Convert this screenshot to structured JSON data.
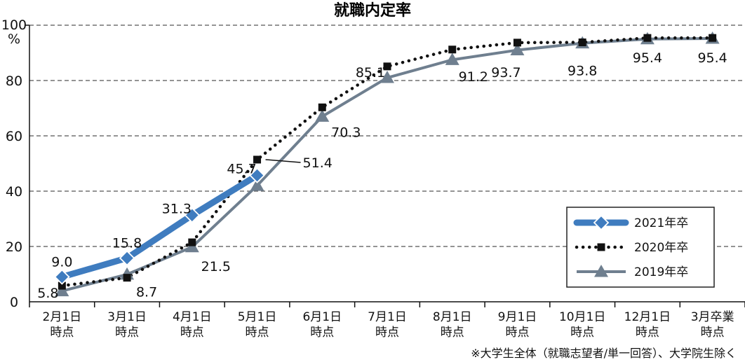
{
  "chart_data": {
    "type": "line",
    "title": "就職内定率",
    "y_unit": "%",
    "ylim": [
      0,
      100
    ],
    "yticks": [
      0,
      20,
      40,
      60,
      80,
      100
    ],
    "grid": "horizontal-dashed",
    "legend_position": "bottom-right",
    "categories": [
      [
        "2月1日",
        "時点"
      ],
      [
        "3月1日",
        "時点"
      ],
      [
        "4月1日",
        "時点"
      ],
      [
        "5月1日",
        "時点"
      ],
      [
        "6月1日",
        "時点"
      ],
      [
        "7月1日",
        "時点"
      ],
      [
        "8月1日",
        "時点"
      ],
      [
        "9月1日",
        "時点"
      ],
      [
        "10月1日",
        "時点"
      ],
      [
        "12月1日",
        "時点"
      ],
      [
        "3月卒業",
        "時点"
      ]
    ],
    "series": [
      {
        "name": "2021年卒",
        "color": "#3f7cbf",
        "style": "solid-thick",
        "marker": "diamond",
        "values": [
          9.0,
          15.8,
          31.3,
          45.7,
          null,
          null,
          null,
          null,
          null,
          null,
          null
        ]
      },
      {
        "name": "2020年卒",
        "color": "#111111",
        "style": "dotted",
        "marker": "square",
        "values": [
          5.8,
          8.7,
          21.5,
          51.4,
          70.3,
          85.1,
          91.2,
          93.7,
          93.8,
          95.4,
          95.4
        ]
      },
      {
        "name": "2019年卒",
        "color": "#6f7f8f",
        "style": "solid",
        "marker": "triangle",
        "values": [
          3.9,
          9.9,
          19.8,
          42.0,
          67.0,
          81.0,
          87.5,
          91.0,
          93.5,
          95.0,
          95.2
        ]
      }
    ],
    "data_labels": [
      {
        "text": "9.0",
        "series": 0,
        "index": 0
      },
      {
        "text": "15.8",
        "series": 0,
        "index": 1
      },
      {
        "text": "31.3",
        "series": 0,
        "index": 2
      },
      {
        "text": "45.7",
        "series": 0,
        "index": 3
      },
      {
        "text": "5.8",
        "series": 1,
        "index": 0
      },
      {
        "text": "8.7",
        "series": 1,
        "index": 1
      },
      {
        "text": "21.5",
        "series": 1,
        "index": 2
      },
      {
        "text": "51.4",
        "series": 1,
        "index": 3
      },
      {
        "text": "70.3",
        "series": 1,
        "index": 4
      },
      {
        "text": "85.1",
        "series": 1,
        "index": 5
      },
      {
        "text": "91.2",
        "series": 1,
        "index": 6
      },
      {
        "text": "93.7",
        "series": 1,
        "index": 7
      },
      {
        "text": "93.8",
        "series": 1,
        "index": 8
      },
      {
        "text": "95.4",
        "series": 1,
        "index": 9
      },
      {
        "text": "95.4",
        "series": 1,
        "index": 10
      }
    ],
    "footnote": "※大学生全体（就職志望者/単一回答）、大学院生除く"
  }
}
